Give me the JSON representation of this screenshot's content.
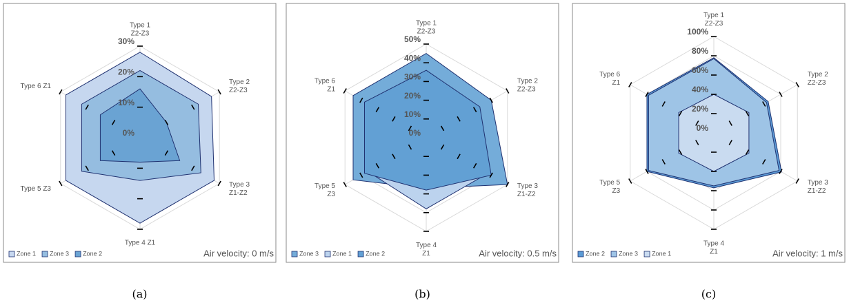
{
  "chart_data": [
    {
      "type": "radar",
      "categories": [
        [
          "Type 1",
          "Z2-Z3"
        ],
        [
          "Type 2",
          "Z2-Z3"
        ],
        [
          "Type 3",
          "Z1-Z2"
        ],
        [
          "Type 4 Z1"
        ],
        [
          "Type 5 Z3"
        ],
        [
          "Type 6 Z1"
        ]
      ],
      "series": [
        {
          "name": "Zone 1",
          "color": "#c6d7ef",
          "values": [
            28,
            27,
            28,
            28,
            28,
            28
          ]
        },
        {
          "name": "Zone 3",
          "color": "#95bde0",
          "values": [
            22,
            22,
            23,
            14,
            22,
            22
          ]
        },
        {
          "name": "Zone 2",
          "color": "#6aa3d3",
          "values": [
            16,
            10,
            15,
            8,
            15,
            15
          ]
        }
      ],
      "ylim": [
        0,
        30
      ],
      "yticks": [
        {
          "value": 0,
          "label": "0%"
        },
        {
          "value": 10,
          "label": "10%"
        },
        {
          "value": 20,
          "label": "20%"
        },
        {
          "value": 30,
          "label": "30%"
        }
      ],
      "grid": true,
      "legend": "bottom-left",
      "annotation": "Air velocity: 0 m/s",
      "caption": "(a)"
    },
    {
      "type": "radar",
      "categories": [
        [
          "Type 1",
          "Z2-Z3"
        ],
        [
          "Type 2",
          "Z2-Z3"
        ],
        [
          "Type 3",
          "Z1-Z2"
        ],
        [
          "Type 4",
          "Z1"
        ],
        [
          "Type 5",
          "Z3"
        ],
        [
          "Type 6",
          "Z1"
        ]
      ],
      "series": [
        {
          "name": "Zone 3",
          "color": "#74acd9",
          "values": [
            45,
            40,
            50,
            27,
            45,
            45
          ]
        },
        {
          "name": "Zone 1",
          "color": "#bcd3ee",
          "values": [
            34,
            32,
            38,
            38,
            36,
            36
          ]
        },
        {
          "name": "Zone 2",
          "color": "#62a0d4",
          "values": [
            36,
            33,
            40,
            28,
            38,
            38
          ]
        }
      ],
      "ylim": [
        0,
        50
      ],
      "yticks": [
        {
          "value": 0,
          "label": "0%"
        },
        {
          "value": 10,
          "label": "10%"
        },
        {
          "value": 20,
          "label": "20%"
        },
        {
          "value": 30,
          "label": "30%"
        },
        {
          "value": 40,
          "label": "40%"
        },
        {
          "value": 50,
          "label": "50%"
        }
      ],
      "grid": true,
      "legend": "bottom-left",
      "annotation": "Air velocity: 0.5 m/s",
      "caption": "(b)"
    },
    {
      "type": "radar",
      "categories": [
        [
          "Type 1",
          "Z2-Z3"
        ],
        [
          "Type 2",
          "Z2-Z3"
        ],
        [
          "Type 3",
          "Z1-Z2"
        ],
        [
          "Type 4",
          "Z1"
        ],
        [
          "Type 5",
          "Z3"
        ],
        [
          "Type 6",
          "Z1"
        ]
      ],
      "series": [
        {
          "name": "Zone 2",
          "color": "#5b9bd5",
          "values": [
            78,
            65,
            81,
            57,
            80,
            80
          ]
        },
        {
          "name": "Zone 3",
          "color": "#9ec4e6",
          "values": [
            77,
            63,
            78,
            55,
            78,
            78
          ]
        },
        {
          "name": "Zone 1",
          "color": "#c9dbf0",
          "values": [
            40,
            42,
            42,
            40,
            42,
            42
          ]
        }
      ],
      "ylim": [
        0,
        100
      ],
      "yticks": [
        {
          "value": 0,
          "label": "0%"
        },
        {
          "value": 20,
          "label": "20%"
        },
        {
          "value": 40,
          "label": "40%"
        },
        {
          "value": 60,
          "label": "60%"
        },
        {
          "value": 80,
          "label": "80%"
        },
        {
          "value": 100,
          "label": "100%"
        }
      ],
      "grid": true,
      "legend": "bottom-left",
      "annotation": "Air velocity: 1 m/s",
      "caption": "(c)"
    }
  ]
}
